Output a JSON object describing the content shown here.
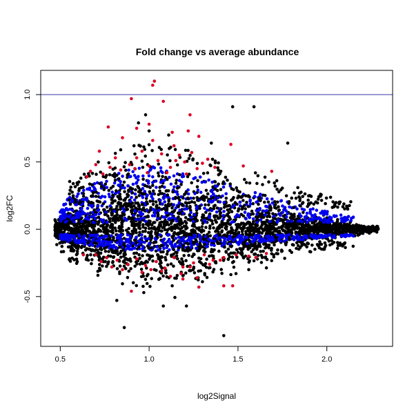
{
  "chart_data": {
    "type": "scatter",
    "title": "Fold change vs average abundance",
    "xlabel": "log2Signal",
    "ylabel": "log2FC",
    "xlim": [
      0.39,
      2.37
    ],
    "ylim": [
      -0.87,
      1.18
    ],
    "xticks": [
      {
        "value": 0.5,
        "label": "0.5"
      },
      {
        "value": 1.0,
        "label": "1.0"
      },
      {
        "value": 1.5,
        "label": "1.5"
      },
      {
        "value": 2.0,
        "label": "2.0"
      }
    ],
    "yticks": [
      {
        "value": -0.5,
        "label": "-0.5"
      },
      {
        "value": 0.0,
        "label": "0.0"
      },
      {
        "value": 0.5,
        "label": "0.5"
      },
      {
        "value": 1.0,
        "label": "1.0"
      }
    ],
    "hline": {
      "y": 1.0,
      "color": "#3333aa"
    },
    "grid": false,
    "colors": {
      "black": "#000000",
      "blue": "#0000ee",
      "red": "#dd0022"
    },
    "cloud": {
      "x_range": [
        0.47,
        2.29
      ],
      "profile": [
        [
          0.47,
          0.08
        ],
        [
          0.55,
          0.25
        ],
        [
          0.7,
          0.4
        ],
        [
          0.9,
          0.55
        ],
        [
          1.1,
          0.55
        ],
        [
          1.3,
          0.45
        ],
        [
          1.5,
          0.35
        ],
        [
          1.7,
          0.25
        ],
        [
          1.9,
          0.15
        ],
        [
          2.1,
          0.07
        ],
        [
          2.29,
          0.03
        ]
      ]
    },
    "series": [
      {
        "color_key": "red",
        "points": [
          [
            1.03,
            1.1
          ],
          [
            1.02,
            1.07
          ],
          [
            0.9,
            0.97
          ],
          [
            1.08,
            0.95
          ],
          [
            1.23,
            0.85
          ],
          [
            0.77,
            0.76
          ],
          [
            0.93,
            0.75
          ],
          [
            1.0,
            0.78
          ],
          [
            1.13,
            0.72
          ],
          [
            1.22,
            0.73
          ],
          [
            1.28,
            0.69
          ],
          [
            0.85,
            0.68
          ],
          [
            1.02,
            0.66
          ],
          [
            1.14,
            0.62
          ],
          [
            1.46,
            0.63
          ],
          [
            0.72,
            0.58
          ],
          [
            0.96,
            0.58
          ],
          [
            1.07,
            0.56
          ],
          [
            1.17,
            0.55
          ],
          [
            1.24,
            0.57
          ],
          [
            0.81,
            0.53
          ],
          [
            0.93,
            0.53
          ],
          [
            1.05,
            0.51
          ],
          [
            1.2,
            0.5
          ],
          [
            1.33,
            0.52
          ],
          [
            0.7,
            0.48
          ],
          [
            0.89,
            0.48
          ],
          [
            1.0,
            0.47
          ],
          [
            1.12,
            0.46
          ],
          [
            1.27,
            0.45
          ],
          [
            1.37,
            0.46
          ],
          [
            0.67,
            0.43
          ],
          [
            0.84,
            0.44
          ],
          [
            0.99,
            0.42
          ],
          [
            1.1,
            0.42
          ],
          [
            1.21,
            0.41
          ],
          [
            1.53,
            0.47
          ],
          [
            1.69,
            0.43
          ],
          [
            0.65,
            0.39
          ],
          [
            0.74,
            0.41
          ],
          [
            0.78,
            0.46
          ],
          [
            0.92,
            0.45
          ],
          [
            1.15,
            0.51
          ],
          [
            1.3,
            0.49
          ],
          [
            0.7,
            -0.19
          ],
          [
            0.76,
            -0.21
          ],
          [
            0.82,
            -0.23
          ],
          [
            0.88,
            -0.26
          ],
          [
            0.93,
            -0.22
          ],
          [
            0.98,
            -0.27
          ],
          [
            1.04,
            -0.24
          ],
          [
            1.09,
            -0.29
          ],
          [
            1.14,
            -0.21
          ],
          [
            1.19,
            -0.28
          ],
          [
            1.25,
            -0.25
          ],
          [
            1.31,
            -0.19
          ],
          [
            1.36,
            -0.23
          ],
          [
            1.42,
            -0.21
          ],
          [
            0.85,
            -0.3
          ],
          [
            0.96,
            -0.32
          ],
          [
            1.07,
            -0.31
          ],
          [
            1.18,
            -0.33
          ],
          [
            1.27,
            -0.36
          ],
          [
            0.79,
            -0.28
          ],
          [
            1.01,
            -0.3
          ],
          [
            1.23,
            -0.28
          ],
          [
            0.9,
            -0.46
          ],
          [
            1.12,
            -0.35
          ],
          [
            1.19,
            -0.37
          ],
          [
            1.28,
            -0.43
          ],
          [
            1.47,
            -0.42
          ],
          [
            1.42,
            -0.42
          ],
          [
            1.56,
            -0.2
          ],
          [
            1.49,
            -0.19
          ],
          [
            1.66,
            -0.18
          ],
          [
            0.63,
            -0.19
          ],
          [
            0.73,
            -0.24
          ],
          [
            1.34,
            -0.26
          ],
          [
            1.4,
            -0.23
          ],
          [
            1.6,
            -0.21
          ]
        ]
      },
      {
        "color_key": "black",
        "points": [
          [
            1.47,
            0.91
          ],
          [
            1.59,
            0.91
          ],
          [
            0.98,
            0.85
          ],
          [
            1.78,
            0.64
          ],
          [
            0.86,
            -0.73
          ],
          [
            1.42,
            -0.79
          ],
          [
            1.08,
            -0.57
          ],
          [
            1.21,
            -0.57
          ],
          [
            0.97,
            -0.47
          ],
          [
            1.13,
            -0.42
          ],
          [
            1.3,
            -0.39
          ],
          [
            0.94,
            0.79
          ],
          [
            1.0,
            0.73
          ],
          [
            1.11,
            0.7
          ],
          [
            1.35,
            0.64
          ]
        ]
      }
    ]
  }
}
